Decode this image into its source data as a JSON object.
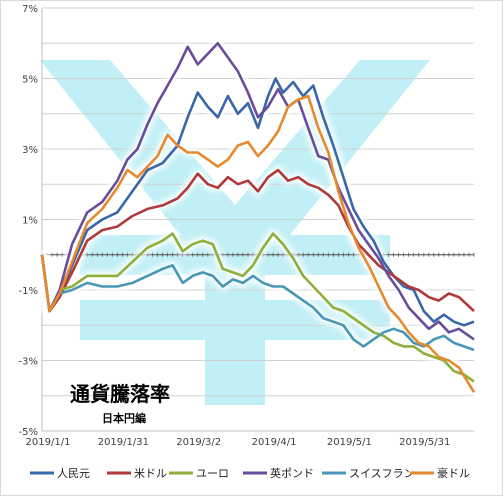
{
  "chart_data": {
    "type": "line",
    "title": "通貨騰落率",
    "subtitle": "日本円編",
    "ylim": [
      -5,
      7
    ],
    "yticks": [
      7,
      5,
      3,
      1,
      -1,
      -3,
      -5
    ],
    "ytick_labels": [
      "7%",
      "5%",
      "3%",
      "1%",
      "-1%",
      "-3%",
      "-5%"
    ],
    "xtick_labels": [
      "2019/1/1",
      "2019/1/31",
      "2019/3/2",
      "2019/4/1",
      "2019/5/1",
      "2019/5/31"
    ],
    "xticks_day": [
      0,
      30,
      60,
      90,
      120,
      150
    ],
    "x_days_max": 172,
    "grid": true,
    "legend_position": "bottom",
    "background_watermark": "yen-sign",
    "series": [
      {
        "name": "人民元",
        "color": "#3a67a8",
        "points": [
          [
            0,
            0
          ],
          [
            3,
            -1.6
          ],
          [
            7,
            -1.2
          ],
          [
            12,
            -0.3
          ],
          [
            18,
            0.7
          ],
          [
            24,
            1.0
          ],
          [
            30,
            1.2
          ],
          [
            36,
            1.8
          ],
          [
            42,
            2.4
          ],
          [
            48,
            2.6
          ],
          [
            54,
            3.1
          ],
          [
            58,
            3.9
          ],
          [
            62,
            4.6
          ],
          [
            66,
            4.2
          ],
          [
            70,
            3.9
          ],
          [
            74,
            4.5
          ],
          [
            78,
            4.0
          ],
          [
            82,
            4.3
          ],
          [
            86,
            3.6
          ],
          [
            90,
            4.5
          ],
          [
            93,
            5.0
          ],
          [
            96,
            4.6
          ],
          [
            100,
            4.9
          ],
          [
            104,
            4.5
          ],
          [
            108,
            4.8
          ],
          [
            112,
            3.9
          ],
          [
            116,
            3.1
          ],
          [
            120,
            2.2
          ],
          [
            124,
            1.3
          ],
          [
            128,
            0.8
          ],
          [
            132,
            0.4
          ],
          [
            136,
            -0.2
          ],
          [
            140,
            -0.6
          ],
          [
            144,
            -0.9
          ],
          [
            148,
            -1.0
          ],
          [
            152,
            -1.6
          ],
          [
            156,
            -1.9
          ],
          [
            160,
            -1.7
          ],
          [
            164,
            -1.9
          ],
          [
            168,
            -2.0
          ],
          [
            172,
            -1.9
          ]
        ]
      },
      {
        "name": "米ドル",
        "color": "#b03a3a",
        "points": [
          [
            0,
            0
          ],
          [
            3,
            -1.6
          ],
          [
            7,
            -1.2
          ],
          [
            12,
            -0.5
          ],
          [
            18,
            0.4
          ],
          [
            24,
            0.7
          ],
          [
            30,
            0.8
          ],
          [
            36,
            1.1
          ],
          [
            42,
            1.3
          ],
          [
            48,
            1.4
          ],
          [
            54,
            1.6
          ],
          [
            58,
            1.9
          ],
          [
            62,
            2.3
          ],
          [
            66,
            2.0
          ],
          [
            70,
            1.9
          ],
          [
            74,
            2.2
          ],
          [
            78,
            2.0
          ],
          [
            82,
            2.1
          ],
          [
            86,
            1.8
          ],
          [
            90,
            2.2
          ],
          [
            94,
            2.4
          ],
          [
            98,
            2.1
          ],
          [
            102,
            2.2
          ],
          [
            106,
            2.0
          ],
          [
            110,
            1.9
          ],
          [
            114,
            1.7
          ],
          [
            118,
            1.4
          ],
          [
            122,
            0.8
          ],
          [
            126,
            0.3
          ],
          [
            130,
            0.0
          ],
          [
            134,
            -0.3
          ],
          [
            138,
            -0.5
          ],
          [
            142,
            -0.7
          ],
          [
            146,
            -0.9
          ],
          [
            150,
            -1.0
          ],
          [
            154,
            -1.2
          ],
          [
            158,
            -1.3
          ],
          [
            162,
            -1.1
          ],
          [
            166,
            -1.2
          ],
          [
            172,
            -1.6
          ]
        ]
      },
      {
        "name": "ユーロ",
        "color": "#8fae3c",
        "points": [
          [
            0,
            0
          ],
          [
            3,
            -1.6
          ],
          [
            7,
            -1.0
          ],
          [
            12,
            -0.9
          ],
          [
            18,
            -0.6
          ],
          [
            24,
            -0.6
          ],
          [
            30,
            -0.6
          ],
          [
            36,
            -0.2
          ],
          [
            42,
            0.2
          ],
          [
            48,
            0.4
          ],
          [
            52,
            0.6
          ],
          [
            56,
            0.1
          ],
          [
            60,
            0.3
          ],
          [
            64,
            0.4
          ],
          [
            68,
            0.3
          ],
          [
            72,
            -0.4
          ],
          [
            76,
            -0.5
          ],
          [
            80,
            -0.6
          ],
          [
            84,
            -0.3
          ],
          [
            88,
            0.2
          ],
          [
            92,
            0.6
          ],
          [
            96,
            0.3
          ],
          [
            100,
            -0.1
          ],
          [
            104,
            -0.6
          ],
          [
            108,
            -0.9
          ],
          [
            112,
            -1.2
          ],
          [
            116,
            -1.5
          ],
          [
            120,
            -1.6
          ],
          [
            124,
            -1.8
          ],
          [
            128,
            -2.0
          ],
          [
            132,
            -2.2
          ],
          [
            136,
            -2.3
          ],
          [
            140,
            -2.5
          ],
          [
            144,
            -2.6
          ],
          [
            148,
            -2.6
          ],
          [
            152,
            -2.8
          ],
          [
            156,
            -2.9
          ],
          [
            160,
            -3.0
          ],
          [
            164,
            -3.3
          ],
          [
            168,
            -3.4
          ],
          [
            172,
            -3.6
          ]
        ]
      },
      {
        "name": "英ポンド",
        "color": "#6a4d9a",
        "points": [
          [
            0,
            0
          ],
          [
            3,
            -1.6
          ],
          [
            7,
            -1.0
          ],
          [
            12,
            0.3
          ],
          [
            18,
            1.2
          ],
          [
            24,
            1.5
          ],
          [
            30,
            2.1
          ],
          [
            34,
            2.7
          ],
          [
            38,
            3.0
          ],
          [
            42,
            3.7
          ],
          [
            46,
            4.3
          ],
          [
            50,
            4.8
          ],
          [
            54,
            5.3
          ],
          [
            58,
            5.9
          ],
          [
            62,
            5.4
          ],
          [
            66,
            5.7
          ],
          [
            70,
            6.0
          ],
          [
            74,
            5.6
          ],
          [
            78,
            5.2
          ],
          [
            82,
            4.6
          ],
          [
            86,
            3.9
          ],
          [
            90,
            4.2
          ],
          [
            94,
            4.7
          ],
          [
            98,
            4.2
          ],
          [
            102,
            4.4
          ],
          [
            106,
            3.6
          ],
          [
            110,
            2.8
          ],
          [
            114,
            2.7
          ],
          [
            118,
            1.9
          ],
          [
            122,
            1.3
          ],
          [
            126,
            0.7
          ],
          [
            130,
            0.3
          ],
          [
            134,
            -0.1
          ],
          [
            138,
            -0.6
          ],
          [
            142,
            -1.0
          ],
          [
            146,
            -1.5
          ],
          [
            150,
            -1.8
          ],
          [
            154,
            -2.1
          ],
          [
            158,
            -1.9
          ],
          [
            162,
            -2.2
          ],
          [
            166,
            -2.1
          ],
          [
            172,
            -2.4
          ]
        ]
      },
      {
        "name": "スイスフラン",
        "color": "#4a97b5",
        "points": [
          [
            0,
            0
          ],
          [
            3,
            -1.6
          ],
          [
            7,
            -1.1
          ],
          [
            12,
            -1.0
          ],
          [
            18,
            -0.8
          ],
          [
            24,
            -0.9
          ],
          [
            30,
            -0.9
          ],
          [
            36,
            -0.8
          ],
          [
            42,
            -0.6
          ],
          [
            48,
            -0.4
          ],
          [
            52,
            -0.3
          ],
          [
            56,
            -0.8
          ],
          [
            60,
            -0.6
          ],
          [
            64,
            -0.5
          ],
          [
            68,
            -0.6
          ],
          [
            72,
            -0.9
          ],
          [
            76,
            -0.7
          ],
          [
            80,
            -0.8
          ],
          [
            84,
            -0.6
          ],
          [
            88,
            -0.8
          ],
          [
            92,
            -0.9
          ],
          [
            96,
            -0.9
          ],
          [
            100,
            -1.1
          ],
          [
            104,
            -1.3
          ],
          [
            108,
            -1.5
          ],
          [
            112,
            -1.8
          ],
          [
            116,
            -1.9
          ],
          [
            120,
            -2.0
          ],
          [
            124,
            -2.4
          ],
          [
            128,
            -2.6
          ],
          [
            132,
            -2.4
          ],
          [
            136,
            -2.2
          ],
          [
            140,
            -2.1
          ],
          [
            144,
            -2.2
          ],
          [
            148,
            -2.5
          ],
          [
            152,
            -2.6
          ],
          [
            156,
            -2.4
          ],
          [
            160,
            -2.3
          ],
          [
            164,
            -2.5
          ],
          [
            168,
            -2.6
          ],
          [
            172,
            -2.7
          ]
        ]
      },
      {
        "name": "豪ドル",
        "color": "#e58a2e",
        "points": [
          [
            0,
            0
          ],
          [
            3,
            -1.6
          ],
          [
            7,
            -1.1
          ],
          [
            12,
            -0.2
          ],
          [
            18,
            0.9
          ],
          [
            24,
            1.3
          ],
          [
            30,
            1.9
          ],
          [
            34,
            2.4
          ],
          [
            38,
            2.2
          ],
          [
            42,
            2.5
          ],
          [
            46,
            2.8
          ],
          [
            50,
            3.4
          ],
          [
            54,
            3.1
          ],
          [
            58,
            2.9
          ],
          [
            62,
            2.9
          ],
          [
            66,
            2.7
          ],
          [
            70,
            2.5
          ],
          [
            74,
            2.7
          ],
          [
            78,
            3.1
          ],
          [
            82,
            3.2
          ],
          [
            86,
            2.8
          ],
          [
            90,
            3.1
          ],
          [
            94,
            3.5
          ],
          [
            98,
            4.2
          ],
          [
            102,
            4.4
          ],
          [
            106,
            4.5
          ],
          [
            110,
            3.6
          ],
          [
            114,
            2.9
          ],
          [
            118,
            1.8
          ],
          [
            122,
            0.9
          ],
          [
            126,
            0.2
          ],
          [
            130,
            -0.3
          ],
          [
            134,
            -0.9
          ],
          [
            138,
            -1.5
          ],
          [
            142,
            -1.8
          ],
          [
            146,
            -2.2
          ],
          [
            150,
            -2.5
          ],
          [
            154,
            -2.6
          ],
          [
            158,
            -2.9
          ],
          [
            162,
            -3.0
          ],
          [
            166,
            -3.2
          ],
          [
            172,
            -3.9
          ]
        ]
      }
    ]
  }
}
